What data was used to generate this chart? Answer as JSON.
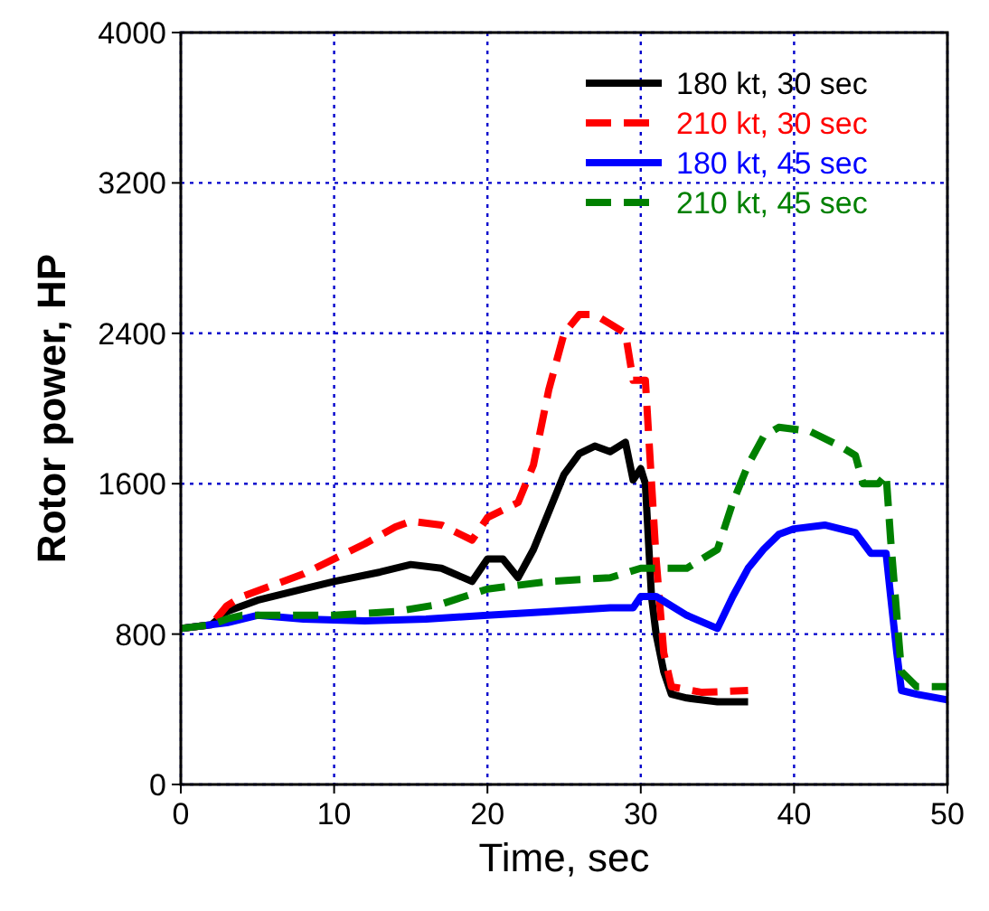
{
  "chart_data": {
    "type": "line",
    "xlabel": "Time, sec",
    "ylabel": "Rotor power, HP",
    "xlim": [
      0,
      50
    ],
    "ylim": [
      0,
      4000
    ],
    "xticks": [
      0,
      10,
      20,
      30,
      40,
      50
    ],
    "yticks": [
      0,
      800,
      1600,
      2400,
      3200,
      4000
    ],
    "grid": true,
    "legend": "top right",
    "series": [
      {
        "name": "180 kt, 30 sec",
        "color": "#000000",
        "line_style": "solid",
        "x": [
          0,
          2,
          3,
          5,
          8,
          10,
          13,
          15,
          17,
          19,
          20,
          21,
          22,
          23,
          24,
          25,
          26,
          27,
          28,
          29,
          29.5,
          30,
          30.3,
          30.7,
          31,
          31.5,
          32,
          33,
          35,
          37
        ],
        "values": [
          830,
          850,
          920,
          980,
          1040,
          1080,
          1130,
          1170,
          1150,
          1080,
          1200,
          1200,
          1100,
          1250,
          1450,
          1650,
          1760,
          1800,
          1770,
          1820,
          1620,
          1680,
          1600,
          1000,
          800,
          600,
          480,
          460,
          440,
          440
        ]
      },
      {
        "name": "210 kt, 30 sec",
        "color": "#ff0000",
        "line_style": "dashed",
        "x": [
          0,
          2,
          3,
          4,
          6,
          8,
          10,
          12,
          14,
          15,
          17,
          19,
          20,
          22,
          23,
          24,
          25,
          26,
          27,
          28,
          29,
          29.5,
          30.3,
          31,
          31.5,
          32,
          34,
          37
        ],
        "values": [
          830,
          850,
          950,
          1000,
          1060,
          1120,
          1200,
          1280,
          1370,
          1400,
          1380,
          1300,
          1420,
          1500,
          1700,
          2100,
          2400,
          2500,
          2500,
          2450,
          2400,
          2150,
          2150,
          1200,
          700,
          520,
          490,
          500
        ]
      },
      {
        "name": "180 kt, 45 sec",
        "color": "#0000ff",
        "line_style": "solid",
        "x": [
          0,
          3,
          5,
          8,
          12,
          16,
          20,
          24,
          28,
          29.5,
          30,
          31,
          33,
          35,
          36,
          37,
          38,
          39,
          40,
          42,
          44,
          45,
          46,
          46.3,
          46.7,
          47,
          48,
          50
        ],
        "values": [
          830,
          860,
          900,
          880,
          870,
          880,
          900,
          920,
          940,
          940,
          1000,
          1000,
          900,
          830,
          1000,
          1150,
          1250,
          1330,
          1360,
          1380,
          1340,
          1230,
          1230,
          1000,
          700,
          500,
          480,
          450
        ]
      },
      {
        "name": "210 kt, 45 sec",
        "color": "#008000",
        "line_style": "dashed",
        "x": [
          0,
          2,
          3,
          4,
          6,
          10,
          14,
          17,
          20,
          24,
          28,
          30,
          33,
          35,
          36,
          37,
          38,
          39,
          41,
          43,
          44,
          44.5,
          45.5,
          46,
          46.3,
          46.7,
          47,
          48,
          50
        ],
        "values": [
          830,
          850,
          880,
          900,
          900,
          900,
          920,
          960,
          1040,
          1080,
          1100,
          1150,
          1150,
          1250,
          1500,
          1700,
          1850,
          1900,
          1880,
          1800,
          1750,
          1600,
          1600,
          1650,
          1300,
          900,
          600,
          520,
          520
        ]
      }
    ]
  }
}
